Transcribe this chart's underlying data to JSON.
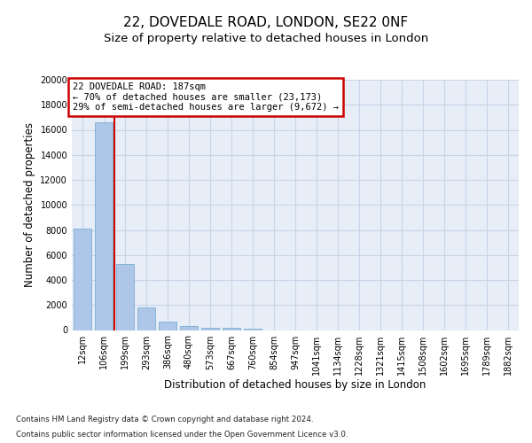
{
  "title_line1": "22, DOVEDALE ROAD, LONDON, SE22 0NF",
  "title_line2": "Size of property relative to detached houses in London",
  "xlabel": "Distribution of detached houses by size in London",
  "ylabel": "Number of detached properties",
  "categories": [
    "12sqm",
    "106sqm",
    "199sqm",
    "293sqm",
    "386sqm",
    "480sqm",
    "573sqm",
    "667sqm",
    "760sqm",
    "854sqm",
    "947sqm",
    "1041sqm",
    "1134sqm",
    "1228sqm",
    "1321sqm",
    "1415sqm",
    "1508sqm",
    "1602sqm",
    "1695sqm",
    "1789sqm",
    "1882sqm"
  ],
  "values": [
    8100,
    16600,
    5300,
    1800,
    650,
    330,
    200,
    155,
    130,
    0,
    0,
    0,
    0,
    0,
    0,
    0,
    0,
    0,
    0,
    0,
    0
  ],
  "bar_color": "#aec6e8",
  "bar_edge_color": "#7aafd4",
  "vline_color": "#cc0000",
  "annotation_text": "22 DOVEDALE ROAD: 187sqm\n← 70% of detached houses are smaller (23,173)\n29% of semi-detached houses are larger (9,672) →",
  "annotation_box_color": "#cc0000",
  "ylim": [
    0,
    20000
  ],
  "yticks": [
    0,
    2000,
    4000,
    6000,
    8000,
    10000,
    12000,
    14000,
    16000,
    18000,
    20000
  ],
  "grid_color": "#c8d4e8",
  "bg_color": "#e8eef8",
  "footer_line1": "Contains HM Land Registry data © Crown copyright and database right 2024.",
  "footer_line2": "Contains public sector information licensed under the Open Government Licence v3.0.",
  "title_fontsize": 11,
  "subtitle_fontsize": 9.5,
  "tick_fontsize": 7,
  "label_fontsize": 8.5,
  "annotation_fontsize": 7.5
}
